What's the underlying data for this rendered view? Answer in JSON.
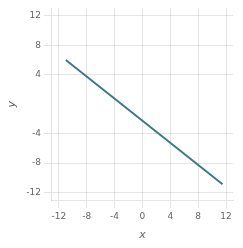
{
  "chart_data": {
    "type": "line",
    "x": [
      -11,
      11.5
    ],
    "values": [
      6,
      -10.875
    ],
    "color": "#3d7a82",
    "xlabel": "x",
    "ylabel": "y",
    "xlim": [
      -13,
      13
    ],
    "ylim": [
      -13,
      13
    ],
    "xticks": [
      -12,
      -8,
      -4,
      0,
      4,
      8,
      12
    ],
    "yticks": [
      -12,
      -8,
      -4,
      4,
      8,
      12
    ],
    "grid": true
  }
}
